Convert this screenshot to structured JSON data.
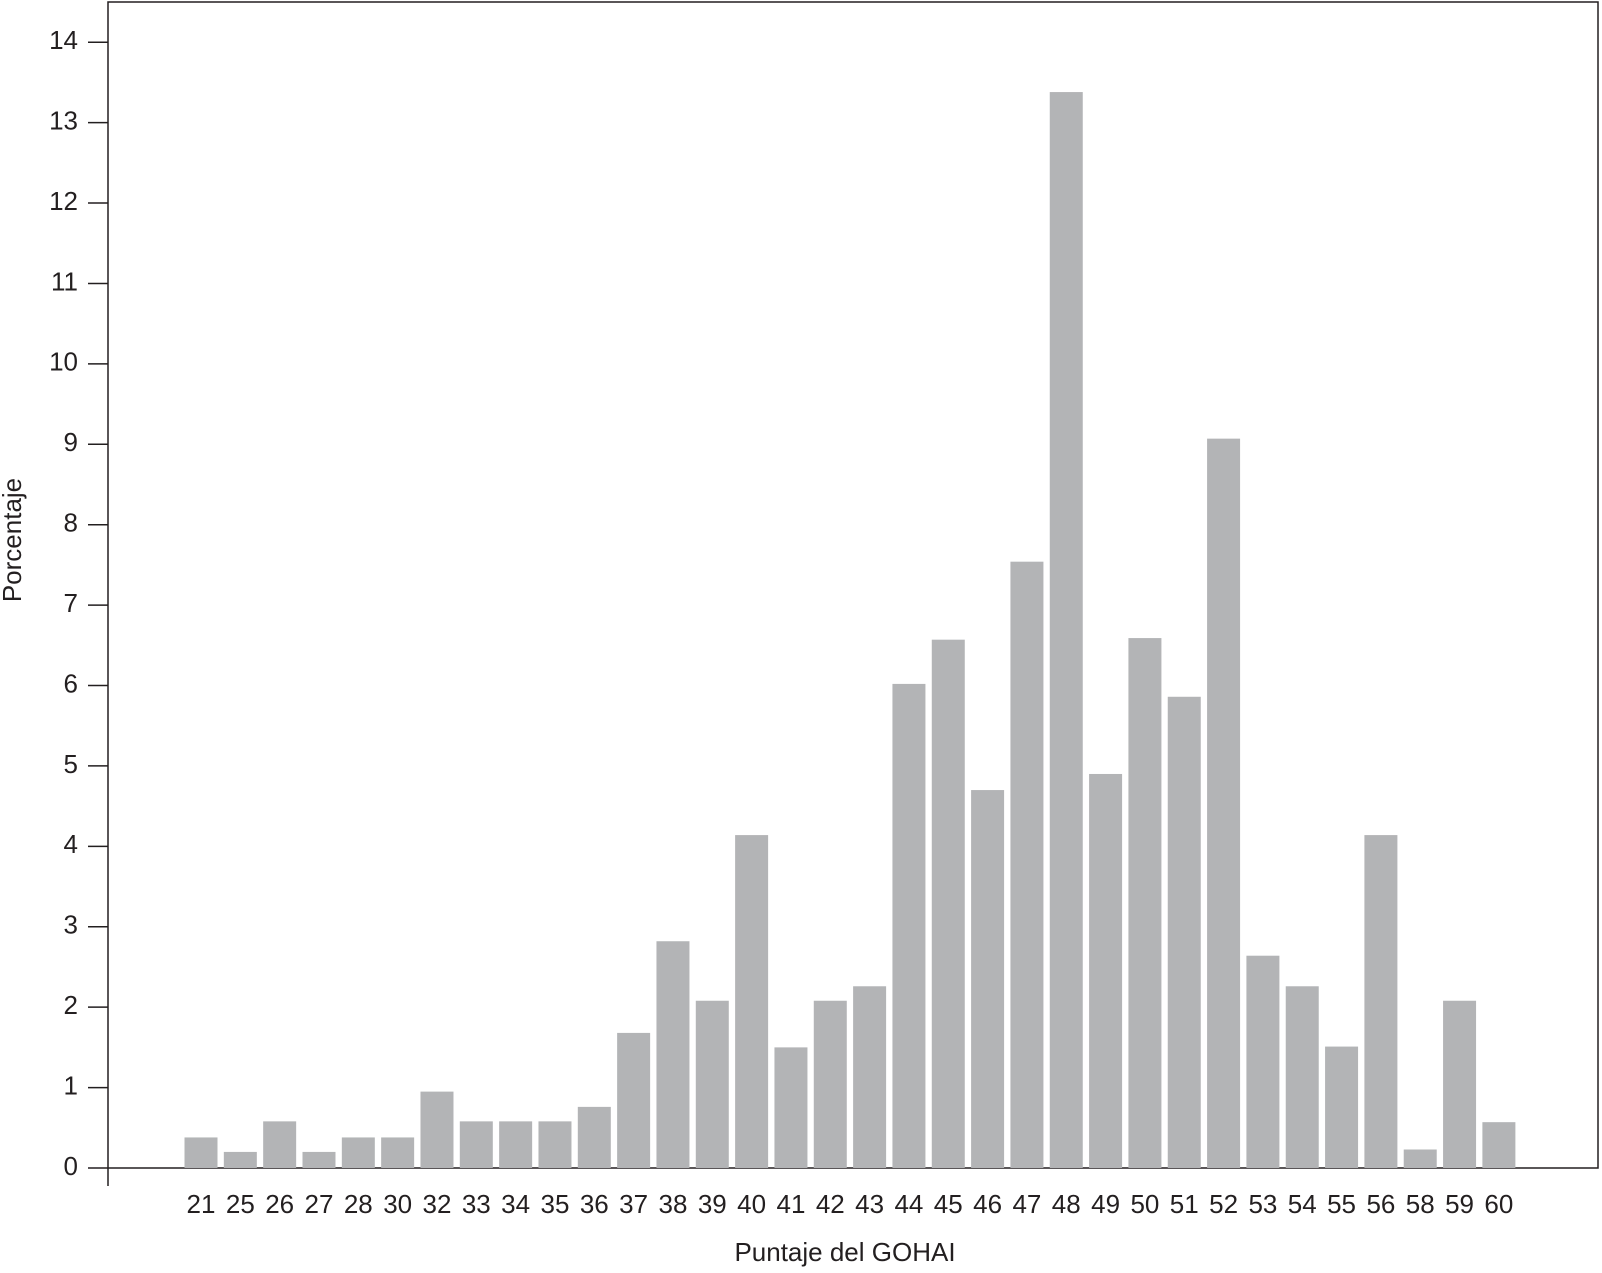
{
  "chart_data": {
    "type": "bar",
    "x_label": "Puntaje del GOHAI",
    "y_label": "Porcentaje",
    "categories": [
      "21",
      "25",
      "26",
      "27",
      "28",
      "30",
      "32",
      "33",
      "34",
      "35",
      "36",
      "37",
      "38",
      "39",
      "40",
      "41",
      "42",
      "43",
      "44",
      "45",
      "46",
      "47",
      "48",
      "49",
      "50",
      "51",
      "52",
      "53",
      "54",
      "55",
      "56",
      "58",
      "59",
      "60"
    ],
    "values": [
      0.38,
      0.2,
      0.58,
      0.2,
      0.38,
      0.38,
      0.95,
      0.58,
      0.58,
      0.58,
      0.76,
      1.68,
      2.82,
      2.08,
      4.14,
      1.5,
      2.08,
      2.26,
      6.02,
      6.57,
      4.7,
      7.54,
      13.38,
      4.9,
      6.59,
      5.86,
      9.07,
      2.64,
      2.26,
      1.51,
      4.14,
      0.23,
      2.08,
      0.57
    ],
    "color": "#b3b4b6",
    "ylim": [
      0,
      14.5
    ],
    "yticks": [
      0,
      1,
      2,
      3,
      4,
      5,
      6,
      7,
      8,
      9,
      10,
      11,
      12,
      13,
      14
    ]
  }
}
